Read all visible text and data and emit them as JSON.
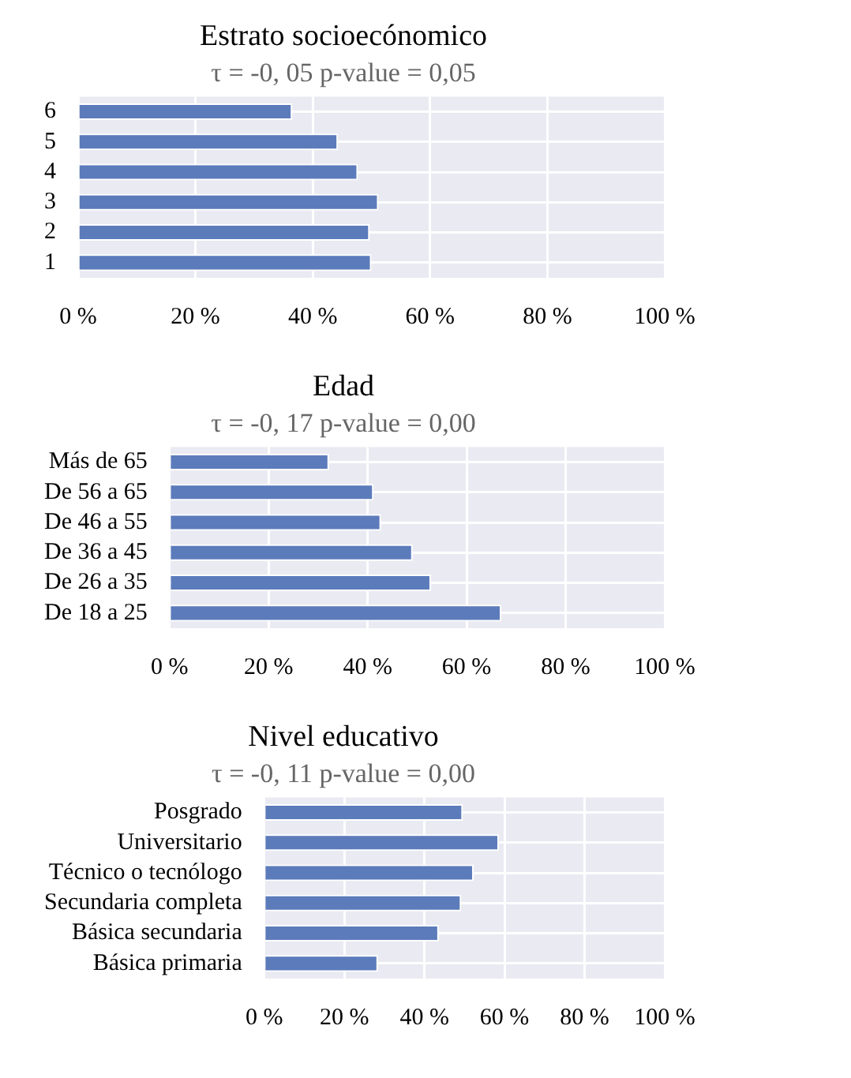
{
  "chart_data": [
    {
      "type": "bar",
      "orientation": "horizontal",
      "title": "Estrato socioecónomico",
      "subtitle": "τ = -0, 05 p-value = 0,05",
      "categories": [
        "6",
        "5",
        "4",
        "3",
        "2",
        "1"
      ],
      "values": [
        36.5,
        44.3,
        47.7,
        51.2,
        49.7,
        50.0
      ],
      "color": "#5b7bbb",
      "xlim": [
        0,
        100
      ],
      "xticks": [
        {
          "value": 0,
          "label": "0 %"
        },
        {
          "value": 20,
          "label": "20 %"
        },
        {
          "value": 40,
          "label": "40 %"
        },
        {
          "value": 60,
          "label": "60 %"
        },
        {
          "value": 80,
          "label": "80 %"
        },
        {
          "value": 100,
          "label": "100 %"
        }
      ],
      "grid": true,
      "legend": false
    },
    {
      "type": "bar",
      "orientation": "horizontal",
      "title": "Edad",
      "subtitle": "τ = -0, 17 p-value = 0,00",
      "categories": [
        "Más de 65",
        "De 56 a 65",
        "De 46 a 55",
        "De 36 a 45",
        "De 26 a 35",
        "De 18 a 25"
      ],
      "values": [
        32.2,
        41.2,
        42.7,
        49.1,
        52.8,
        67.0
      ],
      "color": "#5b7bbb",
      "xlim": [
        0,
        100
      ],
      "xticks": [
        {
          "value": 0,
          "label": "0 %"
        },
        {
          "value": 20,
          "label": "20 %"
        },
        {
          "value": 40,
          "label": "40 %"
        },
        {
          "value": 60,
          "label": "60 %"
        },
        {
          "value": 80,
          "label": "80 %"
        },
        {
          "value": 100,
          "label": "100 %"
        }
      ],
      "grid": true,
      "legend": false
    },
    {
      "type": "bar",
      "orientation": "horizontal",
      "title": "Nivel educativo",
      "subtitle": "τ = -0, 11 p-value = 0,00",
      "categories": [
        "Posgrado",
        "Universitario",
        "Técnico o tecnólogo",
        "Secundaria completa",
        "Básica secundaria",
        "Básica primaria"
      ],
      "values": [
        49.6,
        58.6,
        52.3,
        49.2,
        43.6,
        28.4
      ],
      "color": "#5b7bbb",
      "xlim": [
        0,
        100
      ],
      "xticks": [
        {
          "value": 0,
          "label": "0 %"
        },
        {
          "value": 20,
          "label": "20 %"
        },
        {
          "value": 40,
          "label": "40 %"
        },
        {
          "value": 60,
          "label": "60 %"
        },
        {
          "value": 80,
          "label": "80 %"
        },
        {
          "value": 100,
          "label": "100 %"
        }
      ],
      "grid": true,
      "legend": false
    }
  ]
}
